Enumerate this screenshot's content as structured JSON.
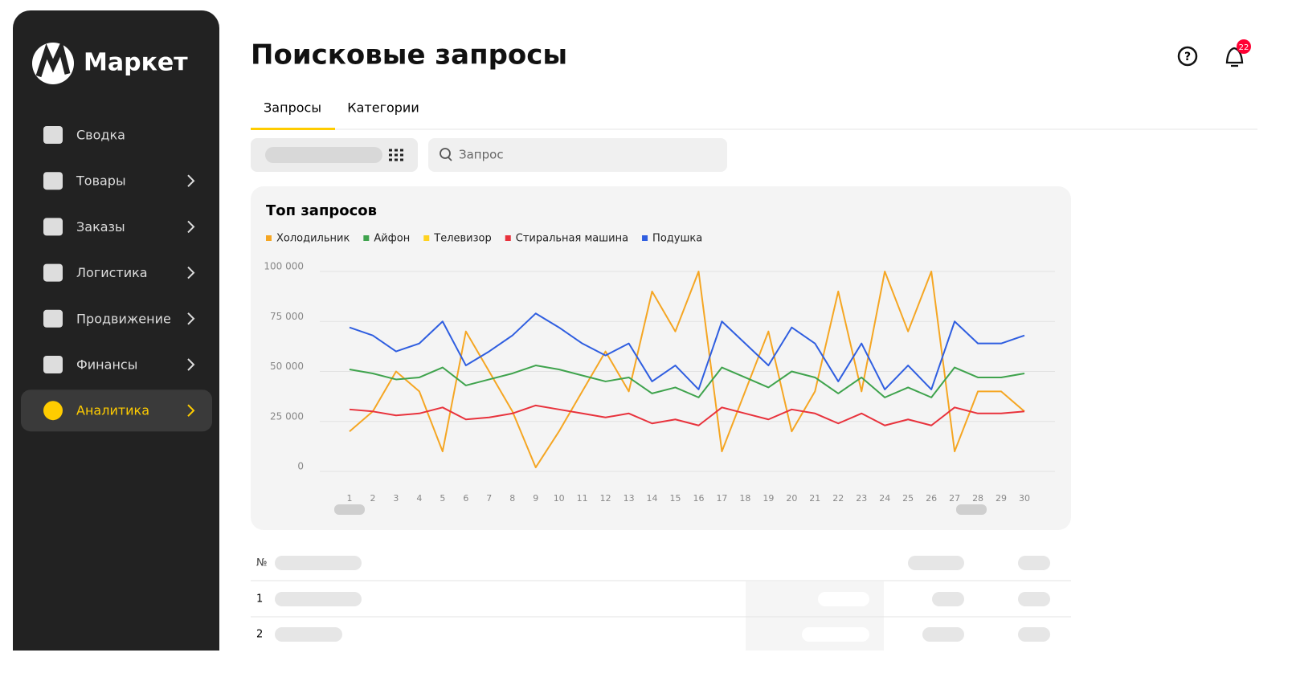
{
  "sidebar": {
    "logo": "Маркет",
    "items": [
      "Сводка",
      "Товары",
      "Заказы",
      "Логистика",
      "Продвижение",
      "Финансы",
      "Аналитика"
    ],
    "active": 6
  },
  "header": {
    "title": "Поисковые запросы",
    "notifications": "22"
  },
  "tabs": [
    "Запросы",
    "Категории"
  ],
  "search": {
    "placeholder": "Запрос"
  },
  "chart_data": {
    "type": "line",
    "title": "Топ запросов",
    "categories": [
      "1",
      "2",
      "3",
      "4",
      "5",
      "6",
      "7",
      "8",
      "9",
      "10",
      "11",
      "12",
      "13",
      "14",
      "15",
      "16",
      "17",
      "18",
      "19",
      "20",
      "21",
      "22",
      "23",
      "24",
      "25",
      "26",
      "27",
      "28",
      "29",
      "30"
    ],
    "series": [
      {
        "name": "Холодильник",
        "color": "#f5a623",
        "values": [
          20000,
          30000,
          50000,
          40000,
          10000,
          70000,
          50000,
          30000,
          2000,
          20000,
          40000,
          60000,
          40000,
          90000,
          70000,
          100000,
          10000,
          40000,
          70000,
          20000,
          40000,
          90000,
          40000,
          100000,
          70000,
          100000,
          10000,
          40000,
          40000,
          30000
        ]
      },
      {
        "name": "Айфон",
        "color": "#3fa34d",
        "values": [
          51000,
          49000,
          46000,
          47000,
          52000,
          43000,
          46000,
          49000,
          53000,
          51000,
          48000,
          45000,
          47000,
          39000,
          42000,
          37000,
          52000,
          47000,
          42000,
          50000,
          47000,
          39000,
          47000,
          37000,
          42000,
          37000,
          52000,
          47000,
          47000,
          49000
        ]
      },
      {
        "name": "Телевизор",
        "color": "#ffd21f",
        "values": [
          null,
          null,
          null,
          null,
          null,
          null,
          null,
          null,
          null,
          null,
          null,
          null,
          null,
          null,
          null,
          null,
          null,
          null,
          null,
          null,
          null,
          null,
          null,
          null,
          null,
          null,
          null,
          null,
          null,
          null
        ]
      },
      {
        "name": "Стиральная машина",
        "color": "#e8323c",
        "values": [
          31000,
          30000,
          28000,
          29000,
          32000,
          26000,
          27000,
          29000,
          33000,
          31000,
          29000,
          27000,
          29000,
          24000,
          26000,
          23000,
          32000,
          29000,
          26000,
          31000,
          29000,
          24000,
          29000,
          23000,
          26000,
          23000,
          32000,
          29000,
          29000,
          30000
        ]
      },
      {
        "name": "Подушка",
        "color": "#2f5ee0",
        "values": [
          72000,
          68000,
          60000,
          64000,
          75000,
          53000,
          60000,
          68000,
          79000,
          72000,
          64000,
          58000,
          64000,
          45000,
          53000,
          41000,
          75000,
          64000,
          53000,
          72000,
          64000,
          45000,
          64000,
          41000,
          53000,
          41000,
          75000,
          64000,
          64000,
          68000
        ]
      }
    ],
    "ylim": [
      0,
      100000
    ],
    "yticks": [
      0,
      {
        "value": 25000,
        "label": "25 000"
      },
      {
        "value": 50000,
        "label": "50 000"
      },
      {
        "value": 75000,
        "label": "75 000"
      },
      {
        "value": 100000,
        "label": "100 000"
      }
    ],
    "grid": true
  },
  "table": {
    "header": "№",
    "rows": [
      "1",
      "2"
    ]
  }
}
